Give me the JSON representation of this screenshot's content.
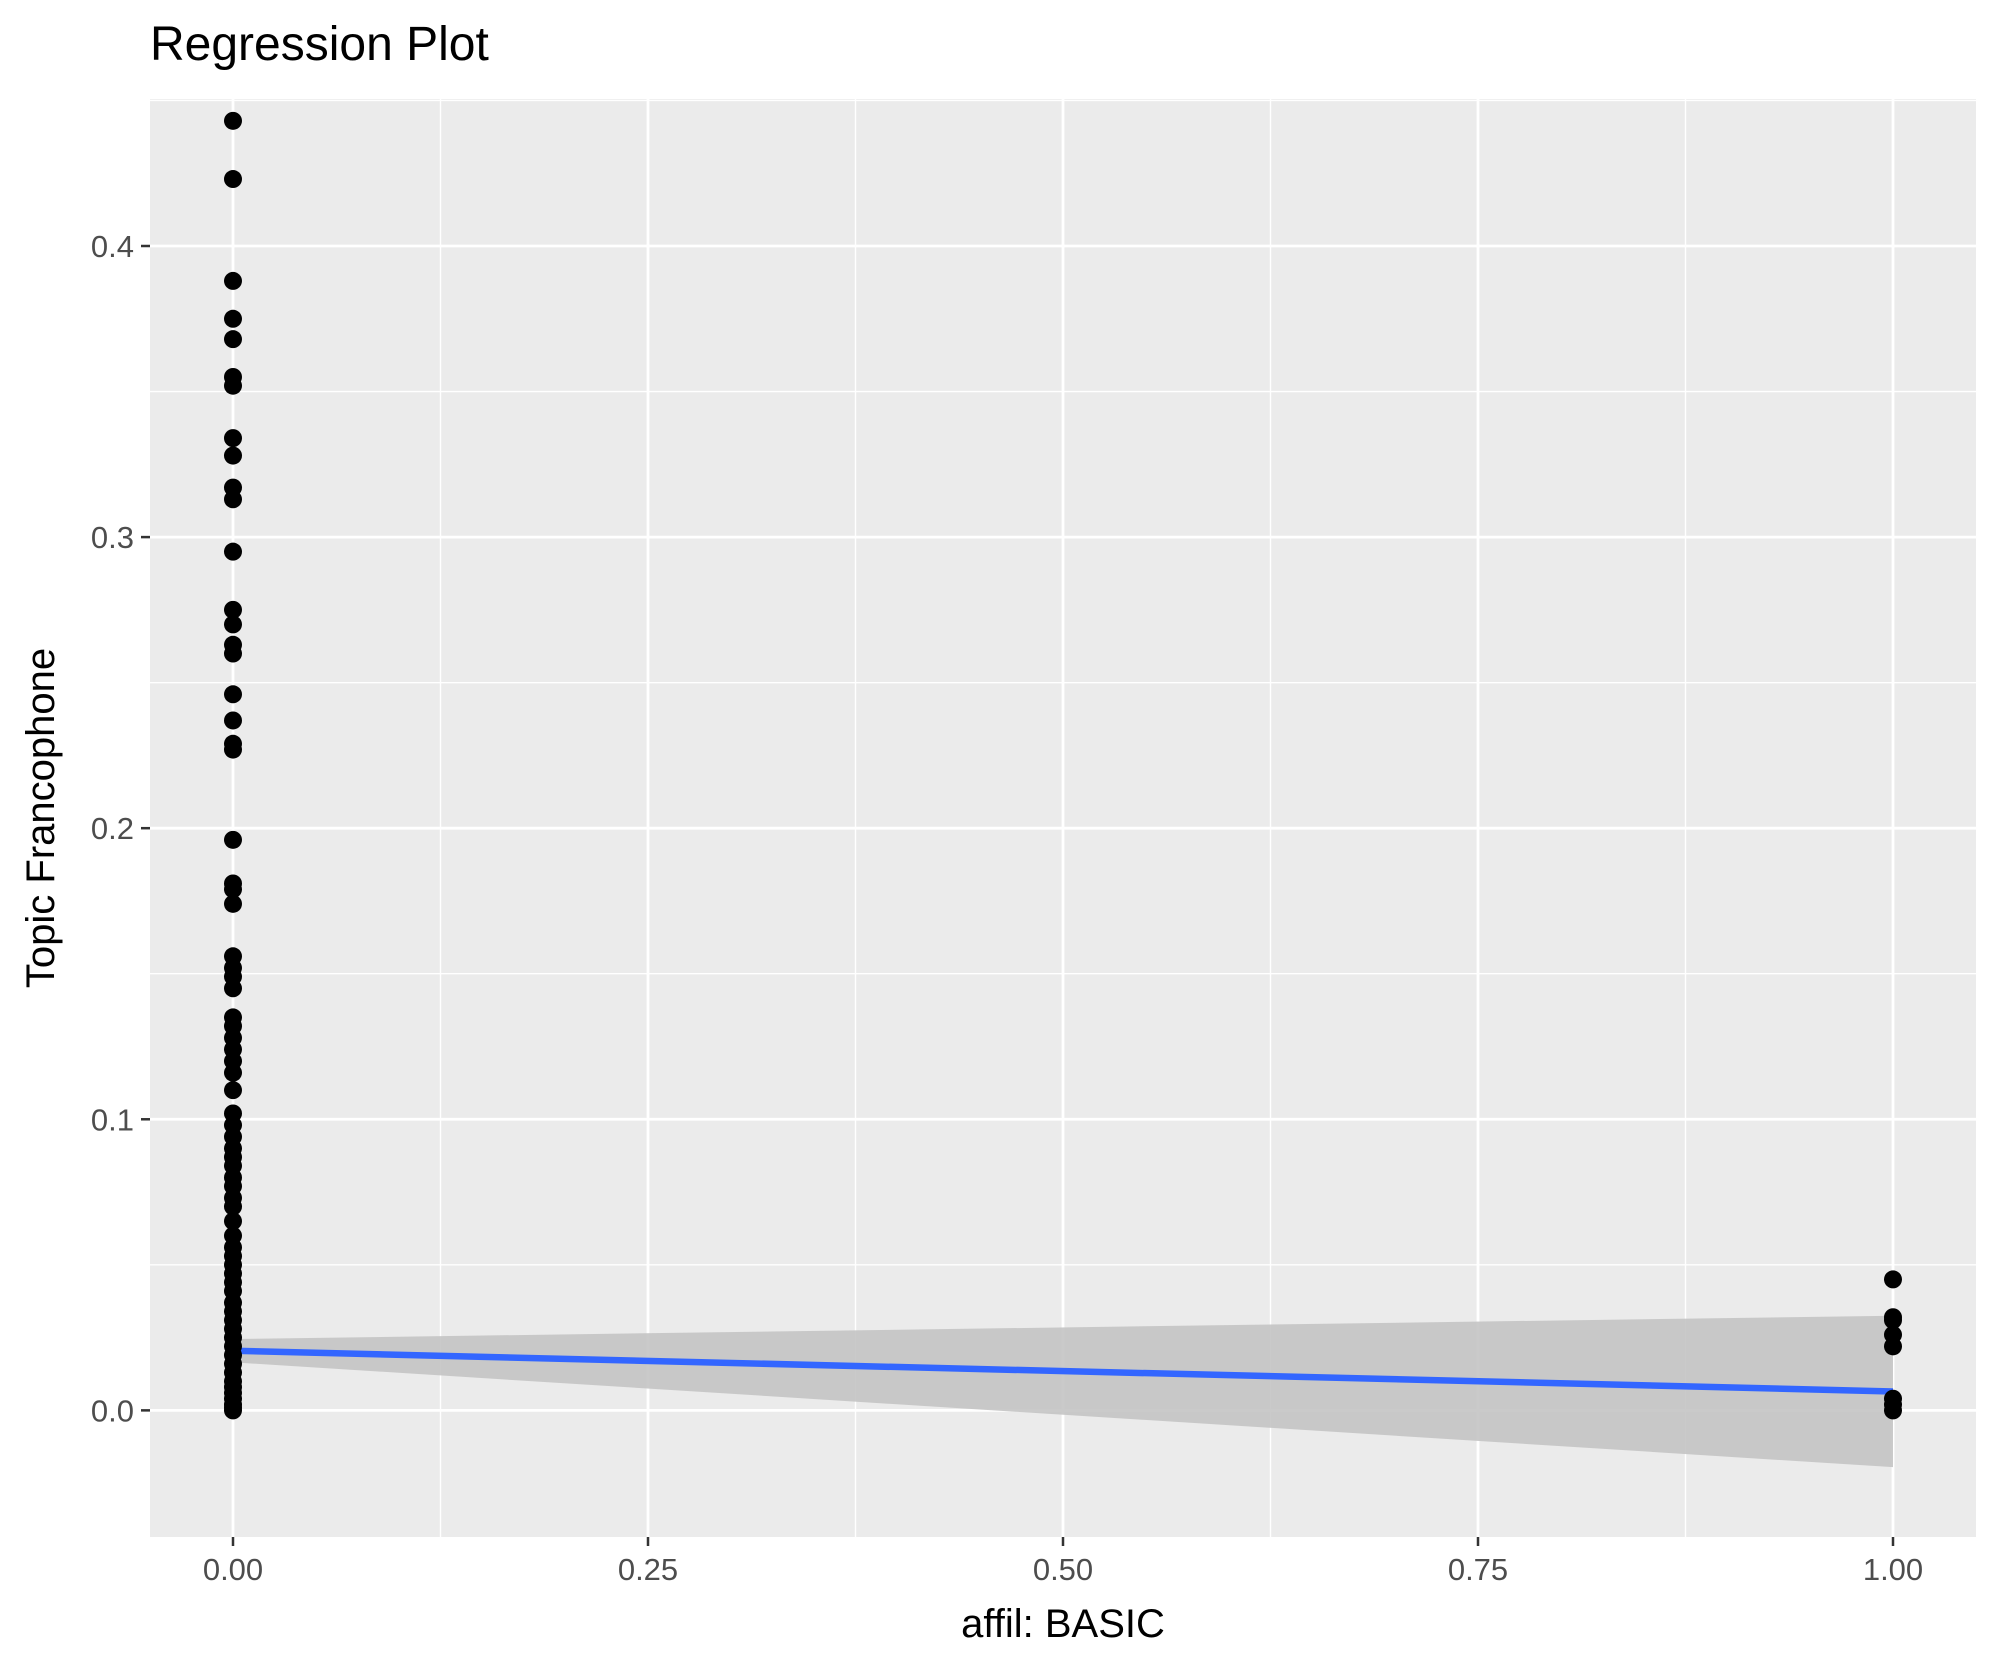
{
  "chart_data": {
    "type": "scatter",
    "title": "Regression Plot",
    "xlabel": "affil: BASIC",
    "ylabel": "Topic Francophone",
    "xlim": [
      -0.05,
      1.05
    ],
    "ylim": [
      -0.0435,
      0.4505
    ],
    "x_ticks": [
      0.0,
      0.25,
      0.5,
      0.75,
      1.0
    ],
    "x_tick_labels": [
      "0.00",
      "0.25",
      "0.50",
      "0.75",
      "1.00"
    ],
    "y_ticks": [
      0.0,
      0.1,
      0.2,
      0.3,
      0.4
    ],
    "y_tick_labels": [
      "0.0",
      "0.1",
      "0.2",
      "0.3",
      "0.4"
    ],
    "grid": true,
    "legend": "none",
    "colors": {
      "panel_background": "#ebebeb",
      "grid_major": "#ffffff",
      "points": "#000000",
      "regression_line": "#3366ff",
      "confidence_band": "#c4c4c4"
    },
    "series": [
      {
        "type": "scatter",
        "points": [
          {
            "x": 0,
            "y": 0.443
          },
          {
            "x": 0,
            "y": 0.423
          },
          {
            "x": 0,
            "y": 0.388
          },
          {
            "x": 0,
            "y": 0.375
          },
          {
            "x": 0,
            "y": 0.368
          },
          {
            "x": 0,
            "y": 0.355
          },
          {
            "x": 0,
            "y": 0.352
          },
          {
            "x": 0,
            "y": 0.334
          },
          {
            "x": 0,
            "y": 0.328
          },
          {
            "x": 0,
            "y": 0.317
          },
          {
            "x": 0,
            "y": 0.313
          },
          {
            "x": 0,
            "y": 0.295
          },
          {
            "x": 0,
            "y": 0.275
          },
          {
            "x": 0,
            "y": 0.27
          },
          {
            "x": 0,
            "y": 0.263
          },
          {
            "x": 0,
            "y": 0.26
          },
          {
            "x": 0,
            "y": 0.246
          },
          {
            "x": 0,
            "y": 0.237
          },
          {
            "x": 0,
            "y": 0.229
          },
          {
            "x": 0,
            "y": 0.227
          },
          {
            "x": 0,
            "y": 0.196
          },
          {
            "x": 0,
            "y": 0.181
          },
          {
            "x": 0,
            "y": 0.179
          },
          {
            "x": 0,
            "y": 0.174
          },
          {
            "x": 0,
            "y": 0.156
          },
          {
            "x": 0,
            "y": 0.152
          },
          {
            "x": 0,
            "y": 0.149
          },
          {
            "x": 0,
            "y": 0.145
          },
          {
            "x": 0,
            "y": 0.135
          },
          {
            "x": 0,
            "y": 0.132
          },
          {
            "x": 0,
            "y": 0.128
          },
          {
            "x": 0,
            "y": 0.124
          },
          {
            "x": 0,
            "y": 0.12
          },
          {
            "x": 0,
            "y": 0.116
          },
          {
            "x": 0,
            "y": 0.11
          },
          {
            "x": 0,
            "y": 0.102
          },
          {
            "x": 0,
            "y": 0.098
          },
          {
            "x": 0,
            "y": 0.094
          },
          {
            "x": 0,
            "y": 0.09
          },
          {
            "x": 0,
            "y": 0.087
          },
          {
            "x": 0,
            "y": 0.084
          },
          {
            "x": 0,
            "y": 0.08
          },
          {
            "x": 0,
            "y": 0.077
          },
          {
            "x": 0,
            "y": 0.073
          },
          {
            "x": 0,
            "y": 0.07
          },
          {
            "x": 0,
            "y": 0.065
          },
          {
            "x": 0,
            "y": 0.06
          },
          {
            "x": 0,
            "y": 0.056
          },
          {
            "x": 0,
            "y": 0.053
          },
          {
            "x": 0,
            "y": 0.05
          },
          {
            "x": 0,
            "y": 0.047
          },
          {
            "x": 0,
            "y": 0.044
          },
          {
            "x": 0,
            "y": 0.041
          },
          {
            "x": 0,
            "y": 0.037
          },
          {
            "x": 0,
            "y": 0.034
          },
          {
            "x": 0,
            "y": 0.031
          },
          {
            "x": 0,
            "y": 0.028
          },
          {
            "x": 0,
            "y": 0.025
          },
          {
            "x": 0,
            "y": 0.022
          },
          {
            "x": 0,
            "y": 0.019
          },
          {
            "x": 0,
            "y": 0.016
          },
          {
            "x": 0,
            "y": 0.013
          },
          {
            "x": 0,
            "y": 0.01
          },
          {
            "x": 0,
            "y": 0.008
          },
          {
            "x": 0,
            "y": 0.006
          },
          {
            "x": 0,
            "y": 0.004
          },
          {
            "x": 0,
            "y": 0.002
          },
          {
            "x": 0,
            "y": 0.001
          },
          {
            "x": 0,
            "y": 0.0
          },
          {
            "x": 1,
            "y": 0.045
          },
          {
            "x": 1,
            "y": 0.032
          },
          {
            "x": 1,
            "y": 0.031
          },
          {
            "x": 1,
            "y": 0.026
          },
          {
            "x": 1,
            "y": 0.022
          },
          {
            "x": 1,
            "y": 0.004
          },
          {
            "x": 1,
            "y": 0.002
          },
          {
            "x": 1,
            "y": 0.0
          }
        ]
      },
      {
        "type": "line",
        "x": [
          0,
          1
        ],
        "y": [
          0.0205,
          0.0065
        ]
      },
      {
        "type": "area",
        "x": [
          0,
          1
        ],
        "y_lower": [
          0.0165,
          -0.0195
        ],
        "y_upper": [
          0.0245,
          0.0325
        ]
      }
    ]
  }
}
